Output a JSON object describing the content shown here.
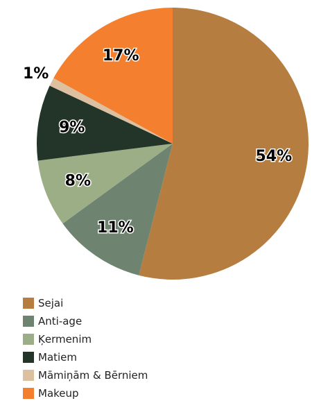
{
  "chart_data": {
    "type": "pie",
    "categories": [
      "Sejai",
      "Anti-age",
      "Ķermenim",
      "Matiem",
      "Māmiņām & Bērniem",
      "Makeup"
    ],
    "values": [
      54,
      11,
      8,
      9,
      1,
      17
    ],
    "value_labels": [
      "54%",
      "11%",
      "8%",
      "9%",
      "1%",
      "17%"
    ],
    "colors": [
      "#b57d3f",
      "#6e8470",
      "#9cae86",
      "#233528",
      "#dcc0a0",
      "#f47f2f"
    ]
  }
}
